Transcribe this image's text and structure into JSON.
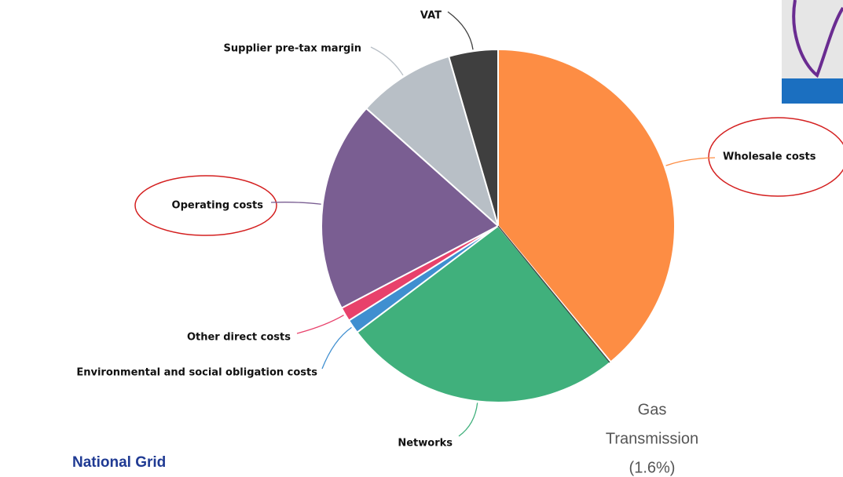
{
  "chart_data": {
    "type": "pie",
    "categories": [
      "Wholesale costs",
      "Networks",
      "Environmental and social obligation costs",
      "Other direct costs",
      "Operating costs",
      "Supplier pre-tax margin",
      "VAT"
    ],
    "values": [
      39,
      25.7,
      1.3,
      1.3,
      19.3,
      8.9,
      4.5
    ],
    "colors": [
      "#fd8d44",
      "#40b07c",
      "#3f8fd0",
      "#e8416b",
      "#7a5e92",
      "#b8bfc6",
      "#3f3f3f"
    ],
    "annotation": [
      "Gas",
      "Transmission",
      "(1.6%)"
    ]
  },
  "footer": "National Grid"
}
